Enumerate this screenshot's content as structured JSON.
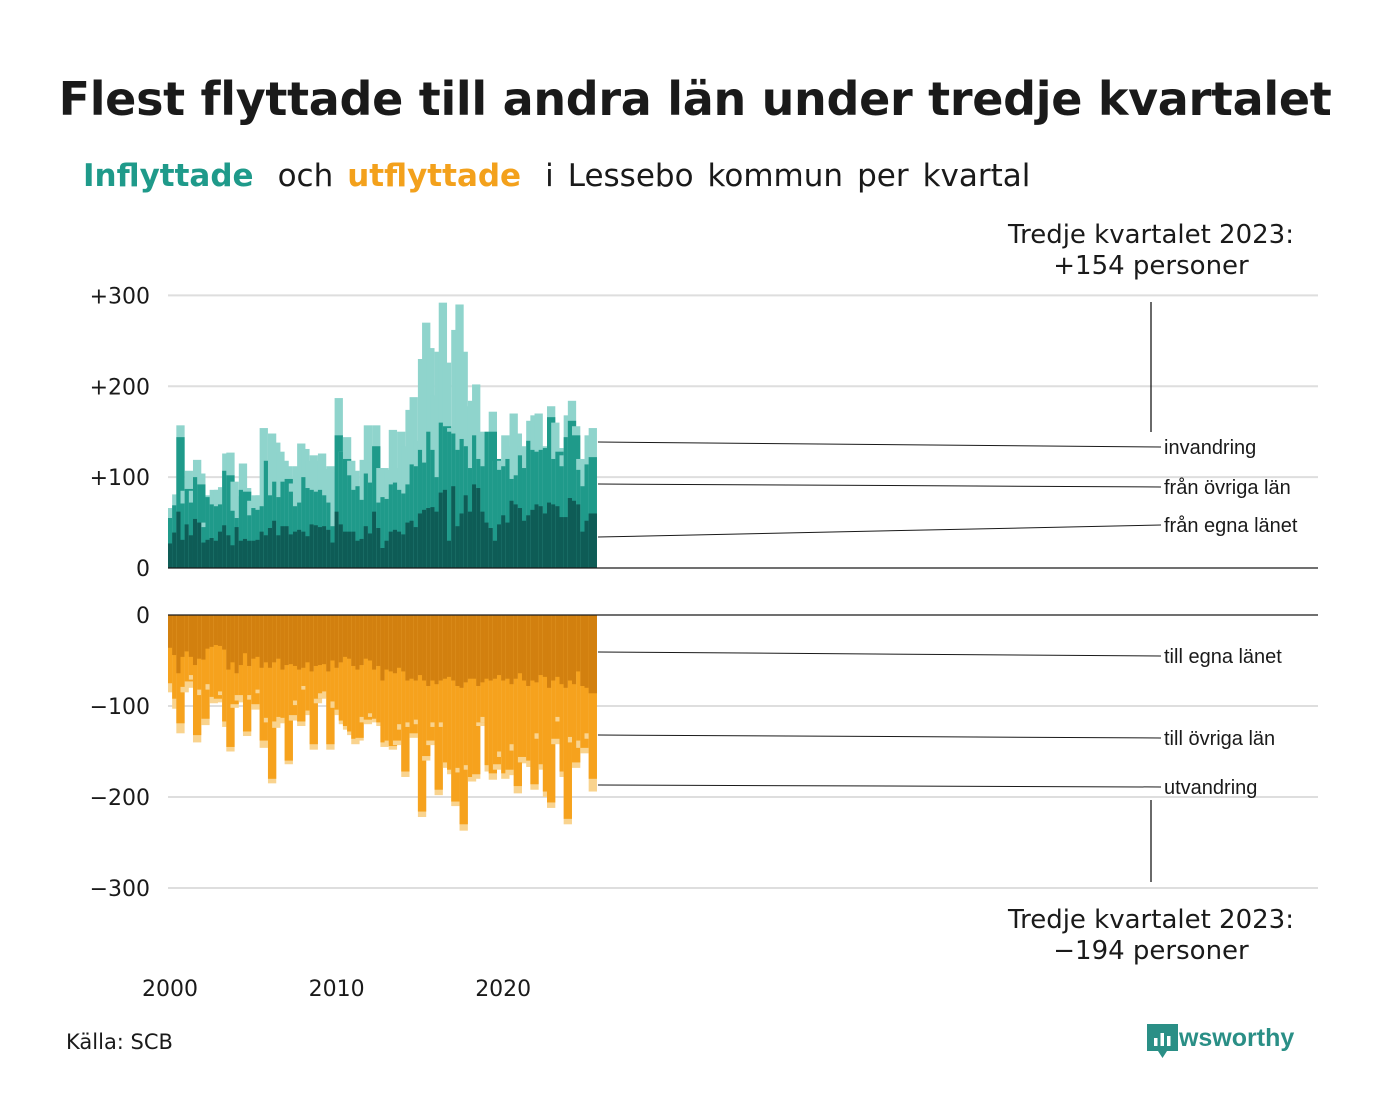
{
  "title": "Flest flyttade till andra län under tredje kvartalet",
  "subtitle": {
    "part1": "Inflyttade",
    "part2": "och",
    "part3": "utflyttade",
    "part4": "i",
    "part5": "Lessebo",
    "part6": "kommun",
    "part7": "per",
    "part8": "kvartal"
  },
  "annotation_top": {
    "line1": "Tredje kvartalet 2023:",
    "line2": "+154 personer"
  },
  "annotation_bottom": {
    "line1": "Tredje kvartalet 2023:",
    "line2": "−194 personer"
  },
  "source": "Källa: SCB",
  "brand": "Newsworthy",
  "colors": {
    "in_own": "#0e5c56",
    "in_other": "#1f9a8a",
    "in_emig": "#8fd4cc",
    "out_own": "#d2800f",
    "out_other": "#f6a21d",
    "out_emig": "#f9d38e",
    "brand": "#2a8f86"
  },
  "chart_data": {
    "type": "bar",
    "stacked": true,
    "x_start": "2000 Q1",
    "x_end": "2023 Q3",
    "x_tick_labels": [
      "2000",
      "2010",
      "2020"
    ],
    "grid": true,
    "inflows": {
      "y_ticks": [
        "+300",
        "+200",
        "+100",
        "0"
      ],
      "ylim": [
        0,
        300
      ],
      "series_labels": [
        "invandring",
        "från övriga län",
        "från egna länet"
      ],
      "own_county": [
        27,
        39,
        62,
        31,
        48,
        36,
        54,
        50,
        28,
        31,
        33,
        30,
        40,
        47,
        36,
        25,
        45,
        30,
        32,
        30,
        30,
        31,
        40,
        36,
        44,
        52,
        36,
        46,
        46,
        37,
        40,
        42,
        40,
        35,
        48,
        47,
        45,
        46,
        42,
        28,
        62,
        48,
        40,
        40,
        40,
        30,
        32,
        46,
        38,
        62,
        44,
        22,
        30,
        40,
        42,
        40,
        37,
        50,
        52,
        45,
        60,
        64,
        66,
        67,
        62,
        83,
        86,
        30,
        90,
        46,
        60,
        80,
        62,
        92,
        88,
        62,
        50,
        44,
        30,
        48,
        58,
        50,
        74,
        70,
        66,
        52,
        58,
        64,
        70,
        68,
        60,
        72,
        70,
        68,
        56,
        56,
        77,
        74,
        70,
        40,
        52,
        60
      ],
      "other_counties": [
        55,
        69,
        144,
        71,
        87,
        72,
        100,
        92,
        45,
        78,
        70,
        68,
        70,
        107,
        102,
        63,
        55,
        86,
        84,
        58,
        66,
        64,
        68,
        118,
        80,
        95,
        78,
        95,
        98,
        84,
        68,
        72,
        100,
        88,
        86,
        84,
        86,
        80,
        72,
        46,
        146,
        128,
        120,
        102,
        86,
        90,
        75,
        104,
        94,
        134,
        72,
        78,
        76,
        92,
        94,
        86,
        82,
        92,
        114,
        112,
        130,
        116,
        150,
        130,
        100,
        160,
        156,
        150,
        148,
        130,
        142,
        134,
        110,
        146,
        120,
        112,
        150,
        150,
        120,
        108,
        112,
        120,
        98,
        102,
        124,
        110,
        140,
        130,
        128,
        130,
        132,
        166,
        120,
        128,
        112,
        144,
        162,
        146,
        108,
        90,
        114,
        122
      ],
      "immigration": [
        66,
        81,
        157,
        85,
        107,
        85,
        119,
        104,
        50,
        80,
        86,
        86,
        89,
        126,
        127,
        95,
        79,
        115,
        88,
        74,
        80,
        80,
        154,
        105,
        148,
        138,
        128,
        118,
        112,
        93,
        112,
        137,
        131,
        118,
        124,
        118,
        126,
        109,
        112,
        105,
        187,
        128,
        144,
        118,
        107,
        90,
        119,
        157,
        116,
        157,
        110,
        110,
        108,
        152,
        110,
        150,
        134,
        174,
        188,
        140,
        230,
        270,
        242,
        190,
        238,
        292,
        226,
        154,
        262,
        290,
        238,
        178,
        184,
        202,
        150,
        146,
        130,
        172,
        118,
        118,
        146,
        134,
        170,
        148,
        134,
        130,
        162,
        168,
        170,
        134,
        130,
        178,
        160,
        132,
        124,
        168,
        184,
        156,
        120,
        118,
        146,
        154
      ]
    },
    "outflows": {
      "y_ticks": [
        "0",
        "−100",
        "−200",
        "−300"
      ],
      "ylim": [
        -300,
        0
      ],
      "series_labels": [
        "till egna länet",
        "till övriga län",
        "utvandring"
      ],
      "own_county": [
        -36,
        -44,
        -64,
        -46,
        -40,
        -46,
        -55,
        -48,
        -49,
        -37,
        -35,
        -33,
        -34,
        -38,
        -60,
        -52,
        -64,
        -55,
        -42,
        -56,
        -48,
        -46,
        -58,
        -52,
        -58,
        -52,
        -48,
        -60,
        -55,
        -54,
        -56,
        -60,
        -58,
        -52,
        -62,
        -56,
        -55,
        -54,
        -62,
        -50,
        -58,
        -52,
        -46,
        -48,
        -56,
        -60,
        -55,
        -48,
        -50,
        -60,
        -56,
        -72,
        -60,
        -62,
        -64,
        -58,
        -62,
        -72,
        -70,
        -72,
        -66,
        -72,
        -78,
        -72,
        -76,
        -72,
        -70,
        -68,
        -72,
        -78,
        -80,
        -74,
        -70,
        -70,
        -78,
        -74,
        -70,
        -72,
        -70,
        -66,
        -72,
        -70,
        -76,
        -70,
        -64,
        -72,
        -78,
        -72,
        -74,
        -66,
        -68,
        -80,
        -72,
        -68,
        -76,
        -80,
        -72,
        -76,
        -62,
        -78,
        -80,
        -86
      ],
      "other_counties": [
        -75,
        -92,
        -119,
        -79,
        -73,
        -66,
        -132,
        -82,
        -114,
        -76,
        -90,
        -92,
        -84,
        -117,
        -145,
        -98,
        -88,
        -88,
        -128,
        -88,
        -98,
        -82,
        -138,
        -113,
        -180,
        -117,
        -112,
        -113,
        -160,
        -110,
        -94,
        -117,
        -78,
        -105,
        -142,
        -92,
        -86,
        -84,
        -142,
        -95,
        -104,
        -116,
        -122,
        -128,
        -136,
        -135,
        -112,
        -115,
        -108,
        -114,
        -118,
        -140,
        -138,
        -144,
        -138,
        -120,
        -172,
        -118,
        -130,
        -115,
        -216,
        -155,
        -138,
        -118,
        -192,
        -118,
        -162,
        -170,
        -205,
        -168,
        -230,
        -165,
        -178,
        -175,
        -118,
        -112,
        -165,
        -174,
        -164,
        -150,
        -174,
        -170,
        -142,
        -188,
        -156,
        -156,
        -160,
        -186,
        -130,
        -164,
        -194,
        -206,
        -136,
        -112,
        -172,
        -224,
        -134,
        -162,
        -138,
        -146,
        -130,
        -180
      ],
      "emigration": [
        -85,
        -103,
        -130,
        -85,
        -80,
        -71,
        -140,
        -88,
        -121,
        -82,
        -97,
        -96,
        -88,
        -123,
        -150,
        -102,
        -94,
        -96,
        -133,
        -93,
        -104,
        -86,
        -146,
        -118,
        -185,
        -124,
        -119,
        -118,
        -164,
        -116,
        -99,
        -122,
        -82,
        -110,
        -148,
        -97,
        -92,
        -90,
        -148,
        -102,
        -110,
        -120,
        -126,
        -132,
        -142,
        -138,
        -118,
        -120,
        -112,
        -118,
        -122,
        -145,
        -142,
        -148,
        -143,
        -126,
        -178,
        -123,
        -135,
        -120,
        -222,
        -160,
        -143,
        -123,
        -198,
        -123,
        -168,
        -175,
        -210,
        -173,
        -237,
        -170,
        -183,
        -180,
        -122,
        -118,
        -172,
        -181,
        -170,
        -156,
        -180,
        -176,
        -149,
        -196,
        -162,
        -163,
        -167,
        -192,
        -136,
        -170,
        -200,
        -212,
        -142,
        -117,
        -178,
        -230,
        -140,
        -168,
        -146,
        -152,
        -136,
        -194
      ]
    }
  }
}
